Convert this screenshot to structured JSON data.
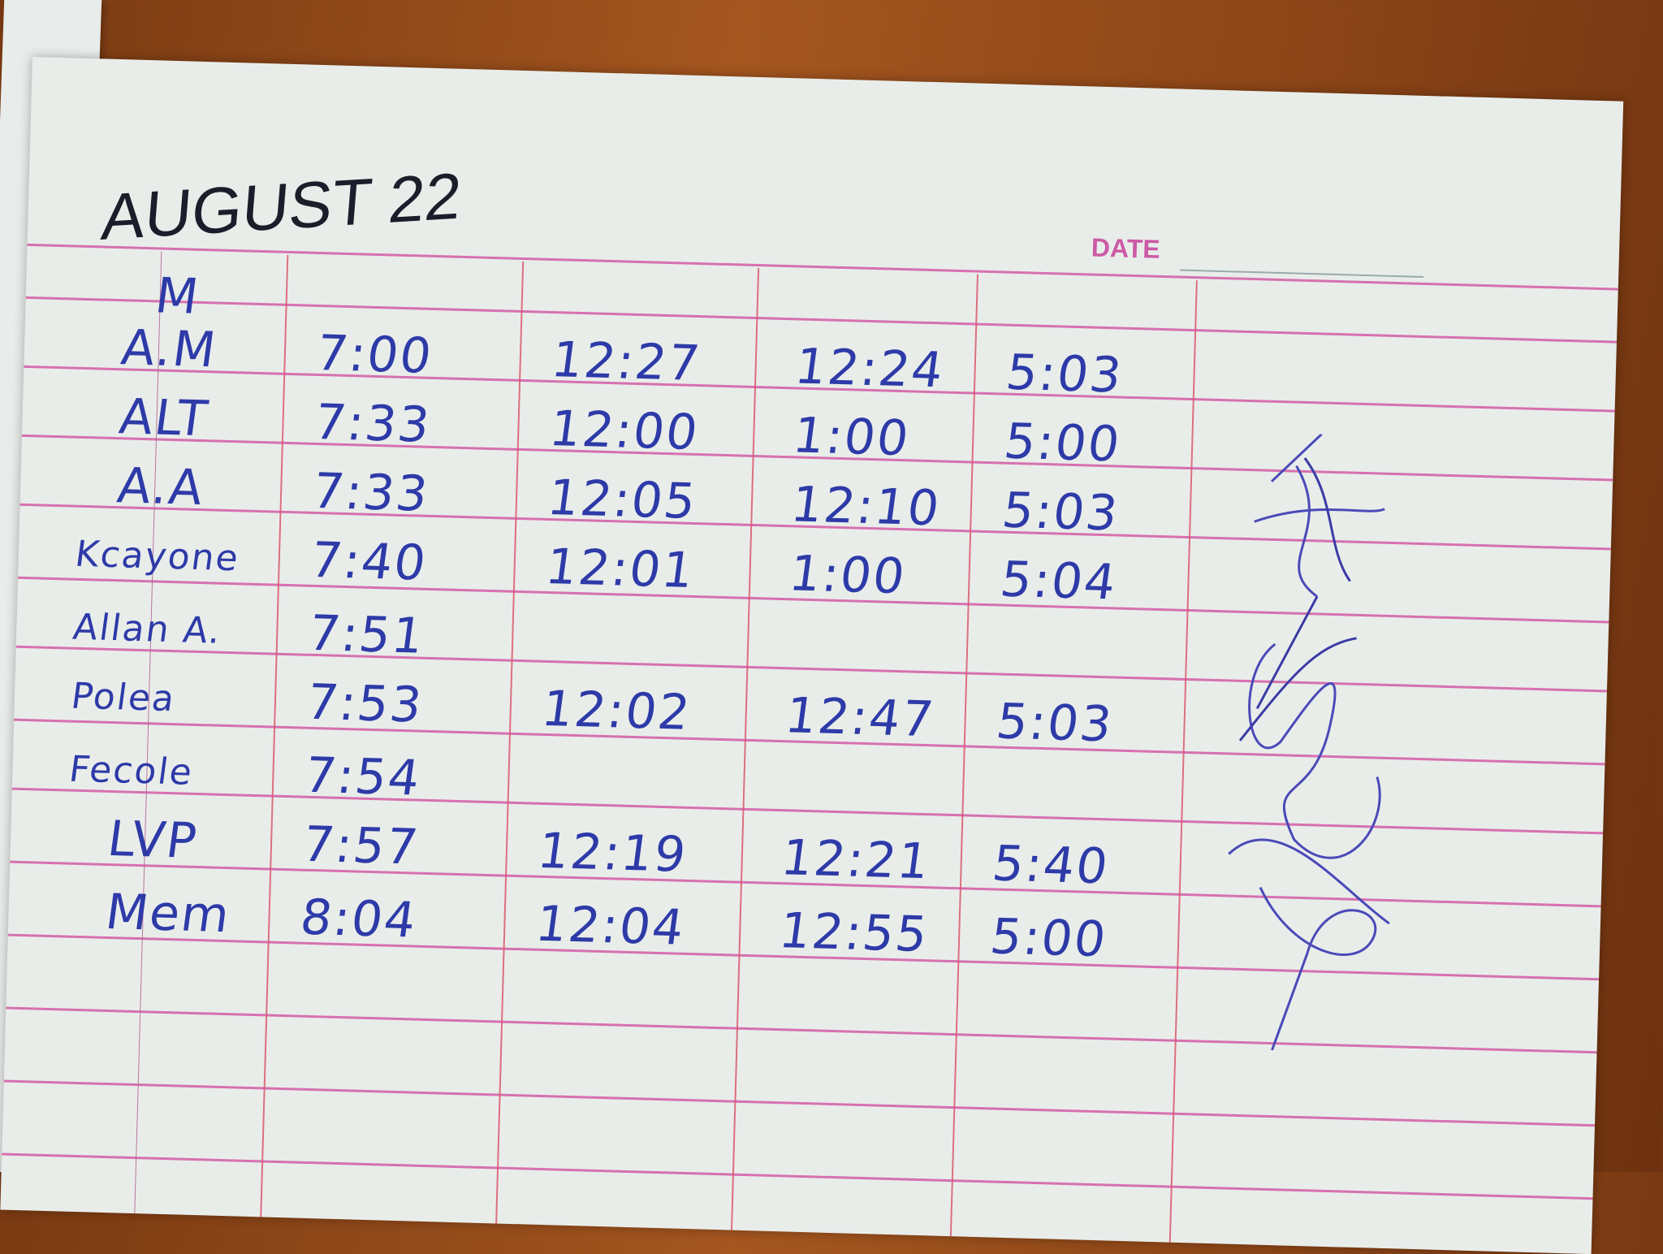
{
  "header": {
    "title": "AUGUST 22",
    "date_label": "DATE"
  },
  "colors": {
    "ink": "#2d3aa8",
    "rule_lines": "#d25aa6",
    "margin_lines": "#d9586f",
    "paper": "#e9edea",
    "desk": "#8c4517"
  },
  "log": {
    "top_mark": "M",
    "rows": [
      {
        "name": "A.M",
        "times": [
          "7:00",
          "12:27",
          "12:24",
          "5:03"
        ]
      },
      {
        "name": "ALT",
        "times": [
          "7:33",
          "12:00",
          "1:00",
          "5:00"
        ]
      },
      {
        "name": "A.A",
        "times": [
          "7:33",
          "12:05",
          "12:10",
          "5:03"
        ]
      },
      {
        "name": "Kcayone",
        "times": [
          "7:40",
          "12:01",
          "1:00",
          "5:04"
        ]
      },
      {
        "name": "Allan A.",
        "times": [
          "7:51",
          "",
          "",
          ""
        ]
      },
      {
        "name": "Polea",
        "times": [
          "7:53",
          "12:02",
          "12:47",
          "5:03"
        ]
      },
      {
        "name": "Fecole",
        "times": [
          "7:54",
          "",
          "",
          ""
        ]
      },
      {
        "name": "LVP",
        "times": [
          "7:57",
          "12:19",
          "12:21",
          "5:40"
        ]
      },
      {
        "name": "Mem",
        "times": [
          "8:04",
          "12:04",
          "12:55",
          "5:00"
        ]
      }
    ]
  }
}
